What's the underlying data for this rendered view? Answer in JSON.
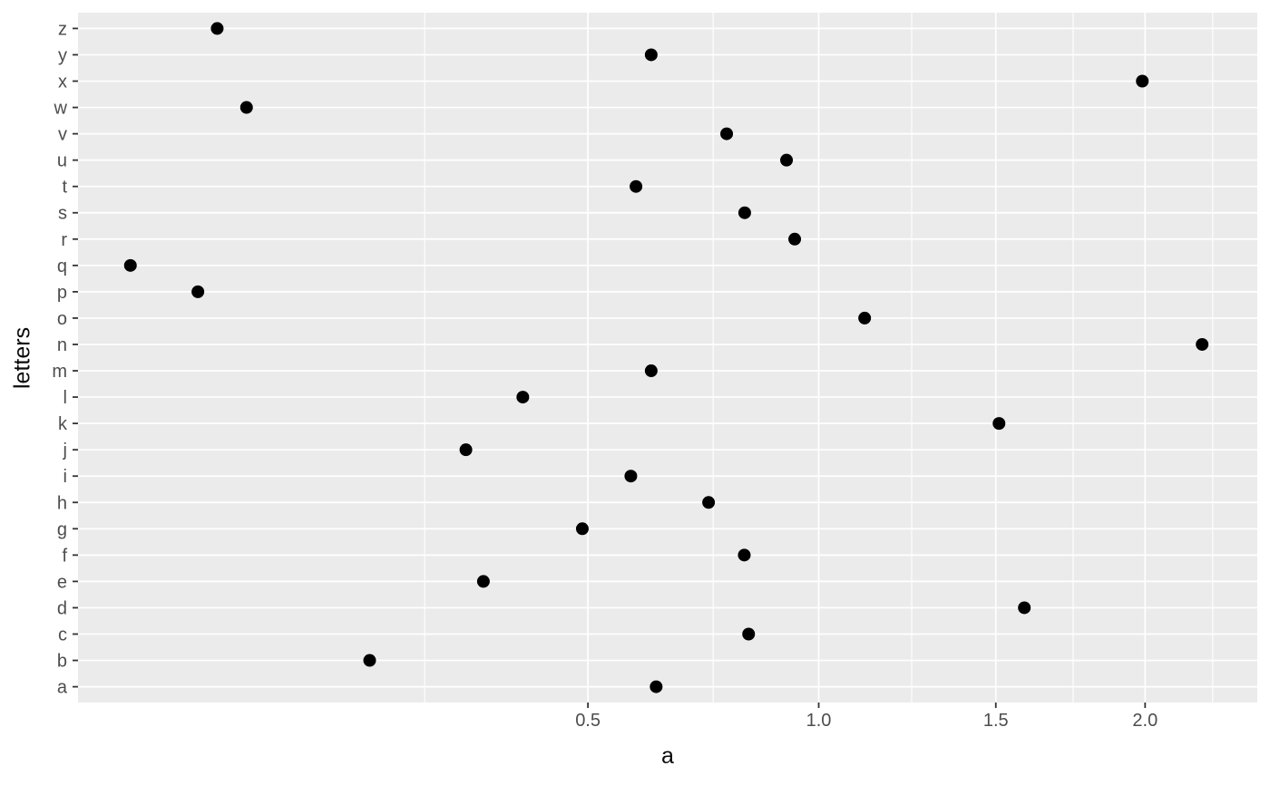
{
  "figure": {
    "background": "#ffffff"
  },
  "chart_data": {
    "type": "scatter",
    "title": "",
    "xlabel": "a",
    "ylabel": "letters",
    "x_scale": "sqrt",
    "xlim": [
      0.0036,
      2.423
    ],
    "x_breaks": [
      0.5,
      1.0,
      1.5,
      2.0
    ],
    "x_tick_labels": [
      "0.5",
      "1.0",
      "1.5",
      "2.0"
    ],
    "x_minor_breaks": [
      0.25,
      0.75,
      1.25,
      1.75,
      2.25
    ],
    "grid": "major-and-minor",
    "legend_position": "none",
    "categories_bottom_to_top": [
      "a",
      "b",
      "c",
      "d",
      "e",
      "f",
      "g",
      "h",
      "i",
      "j",
      "k",
      "l",
      "m",
      "n",
      "o",
      "p",
      "q",
      "r",
      "s",
      "t",
      "u",
      "v",
      "w",
      "x",
      "y",
      "z"
    ],
    "points": [
      {
        "letter": "a",
        "a": 0.63
      },
      {
        "letter": "b",
        "a": 0.185
      },
      {
        "letter": "c",
        "a": 0.83
      },
      {
        "letter": "d",
        "a": 1.59
      },
      {
        "letter": "e",
        "a": 0.33
      },
      {
        "letter": "f",
        "a": 0.82
      },
      {
        "letter": "g",
        "a": 0.49
      },
      {
        "letter": "h",
        "a": 0.74
      },
      {
        "letter": "i",
        "a": 0.58
      },
      {
        "letter": "j",
        "a": 0.305
      },
      {
        "letter": "k",
        "a": 1.51
      },
      {
        "letter": "l",
        "a": 0.39
      },
      {
        "letter": "m",
        "a": 0.62
      },
      {
        "letter": "n",
        "a": 2.21
      },
      {
        "letter": "o",
        "a": 1.12
      },
      {
        "letter": "p",
        "a": 0.045
      },
      {
        "letter": "q",
        "a": 0.016
      },
      {
        "letter": "r",
        "a": 0.94
      },
      {
        "letter": "s",
        "a": 0.821
      },
      {
        "letter": "t",
        "a": 0.59
      },
      {
        "letter": "u",
        "a": 0.92
      },
      {
        "letter": "v",
        "a": 0.78
      },
      {
        "letter": "w",
        "a": 0.075
      },
      {
        "letter": "x",
        "a": 1.99
      },
      {
        "letter": "y",
        "a": 0.62
      },
      {
        "letter": "z",
        "a": 0.056
      }
    ]
  },
  "style": {
    "panel_background": "#EBEBEB",
    "grid_color": "#FFFFFF",
    "tick_label_color": "#4D4D4D",
    "axis_title_color": "#0a0a0a",
    "tick_mark_color": "#333333",
    "point_color": "#000000"
  }
}
